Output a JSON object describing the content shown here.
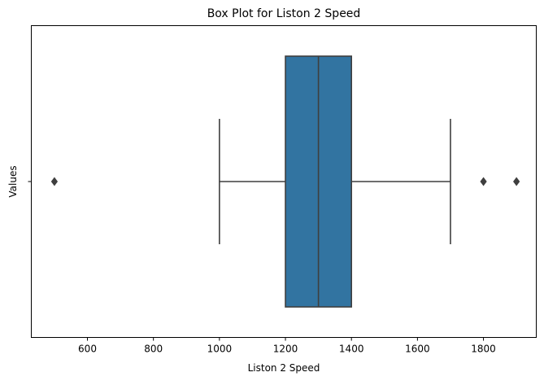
{
  "chart_data": {
    "type": "box",
    "title": "Box Plot for Liston 2 Speed",
    "xlabel": "Liston 2 Speed",
    "ylabel": "Values",
    "xlim": [
      430,
      1960
    ],
    "xticks": [
      600,
      800,
      1000,
      1200,
      1400,
      1600,
      1800
    ],
    "yticks": [
      ""
    ],
    "grid": false,
    "box": {
      "whisker_low": 1000,
      "q1": 1200,
      "median": 1300,
      "q3": 1400,
      "whisker_high": 1700,
      "outliers": [
        500,
        1800,
        1900
      ],
      "color": "#3274a1",
      "line_color": "#3f3f3f"
    }
  }
}
